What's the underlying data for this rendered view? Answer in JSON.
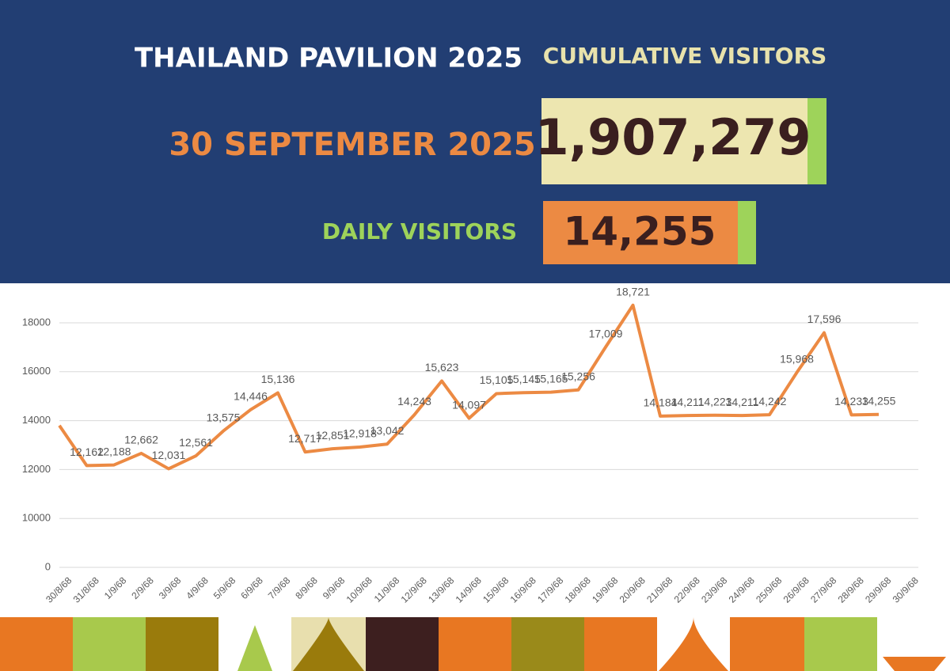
{
  "header": {
    "title": "THAILAND PAVILION 2025",
    "cumulative_label": "CUMULATIVE VISITORS",
    "date": "30 SEPTEMBER 2025",
    "cumulative_value": "1,907,279",
    "daily_label": "DAILY VISITORS",
    "daily_value": "14,255"
  },
  "chart_data": {
    "type": "line",
    "color": "#ec8a43",
    "categories": [
      "30/8/68",
      "31/8/68",
      "1/9/68",
      "2/9/68",
      "3/9/68",
      "4/9/68",
      "5/9/68",
      "6/9/68",
      "7/9/68",
      "8/9/68",
      "9/9/68",
      "10/9/68",
      "11/9/68",
      "12/9/68",
      "13/9/68",
      "14/9/68",
      "15/9/68",
      "16/9/68",
      "17/9/68",
      "18/9/68",
      "19/9/68",
      "20/9/68",
      "21/9/68",
      "22/9/68",
      "23/9/68",
      "24/9/68",
      "25/9/68",
      "26/9/68",
      "27/9/68",
      "28/9/68",
      "29/9/68",
      "30/9/68"
    ],
    "values": [
      13800,
      12162,
      12188,
      12662,
      12031,
      12561,
      13575,
      14446,
      15136,
      12717,
      12851,
      12918,
      13042,
      14243,
      15623,
      14097,
      15105,
      15145,
      15165,
      15256,
      17009,
      18721,
      14184,
      14211,
      14223,
      14211,
      14242,
      15968,
      17596,
      14233,
      14255,
      null
    ],
    "value_labels": [
      null,
      "12,162",
      "12,188",
      "12,662",
      "12,031",
      "12,561",
      "13,575",
      "14,446",
      "15,136",
      "12,717",
      "12,851",
      "12,918",
      "13,042",
      "14,243",
      "15,623",
      "14,097",
      "15,105",
      "15,145",
      "15,165",
      "15,256",
      "17,009",
      "18,721",
      "14,184",
      "14,211",
      "14,223",
      "14,211",
      "14,242",
      "15,968",
      "17,596",
      "14,233",
      "14,255",
      null
    ],
    "yticks": [
      0,
      10000,
      12000,
      14000,
      16000,
      18000
    ],
    "grid": true
  }
}
